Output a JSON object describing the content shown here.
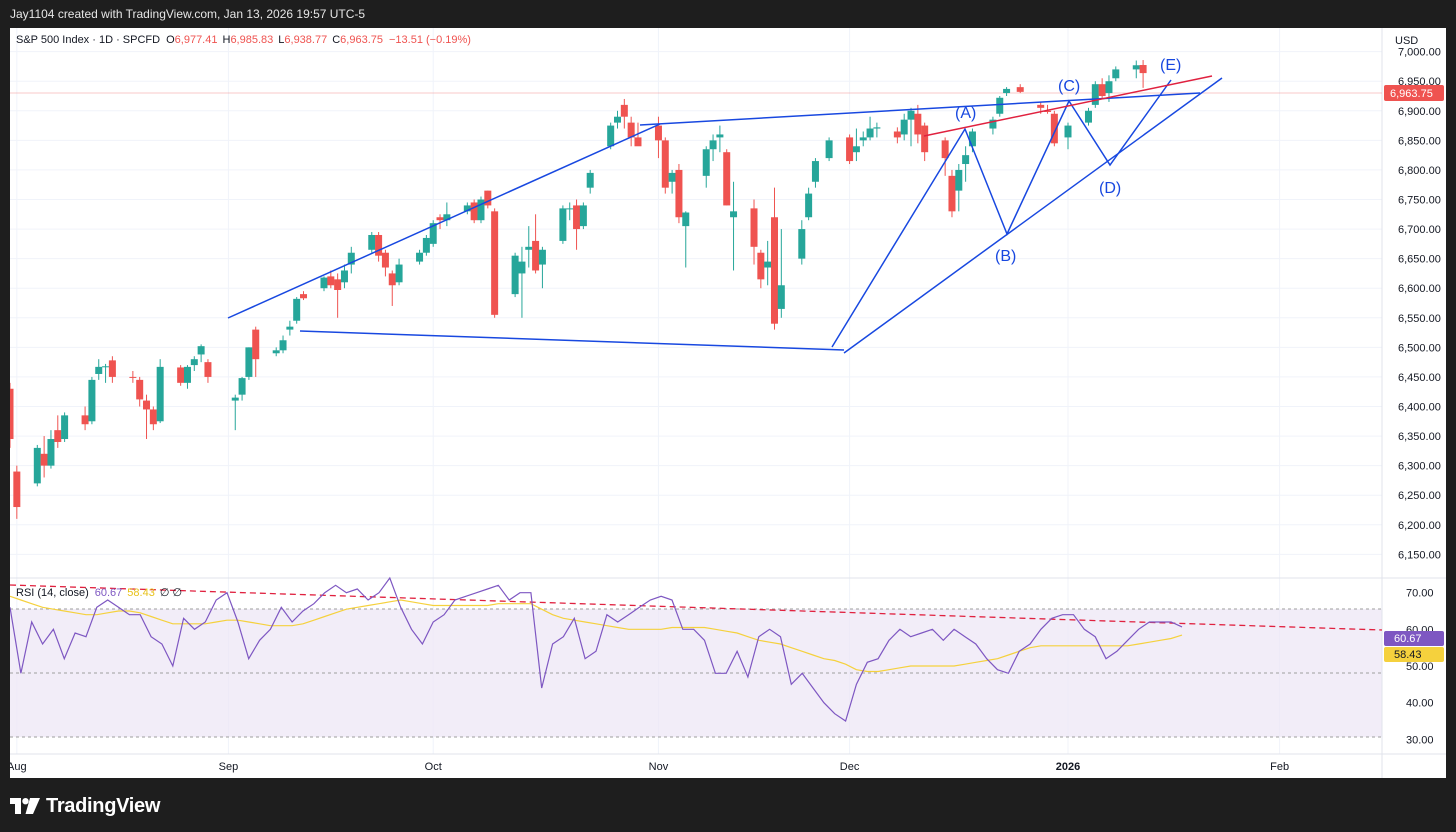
{
  "header": {
    "credit": "Jay1104 created with TradingView.com, Jan 13, 2026 19:57 UTC-5"
  },
  "legend": {
    "symbol": "S&P 500 Index · 1D · SPCFD",
    "o_label": "O",
    "o_value": "6,977.41",
    "h_label": "H",
    "h_value": "6,985.83",
    "l_label": "L",
    "l_value": "6,938.77",
    "c_label": "C",
    "c_value": "6,963.75",
    "change": "−13.51 (−0.19%)"
  },
  "currency": "USD",
  "price_tag": "6,963.75",
  "rsi": {
    "label": "RSI (14, close)",
    "value": "60.67",
    "ma": "58.43",
    "extra": "∅ ∅",
    "value_tag": "60.67",
    "ma_tag": "58.43"
  },
  "footer": {
    "brand": "TradingView"
  },
  "colors": {
    "up": "#26a69a",
    "down": "#ef5350",
    "pattern": "#1848e0",
    "resistance": "#e0213f",
    "rsi": "#7e57c2",
    "rsi_ma": "#f5d13d"
  },
  "chart_data": [
    {
      "type": "candlestick",
      "title": "S&P 500 Index · 1D · SPCFD",
      "ylabel": "USD",
      "ylim": [
        6110,
        7040
      ],
      "y_ticks": [
        "7,000.00",
        "6,950.00",
        "6,900.00",
        "6,850.00",
        "6,800.00",
        "6,750.00",
        "6,700.00",
        "6,650.00",
        "6,600.00",
        "6,550.00",
        "6,500.00",
        "6,450.00",
        "6,400.00",
        "6,350.00",
        "6,300.00",
        "6,250.00",
        "6,200.00",
        "6,150.00"
      ],
      "x_ticks": [
        {
          "label": "Aug",
          "date": "2025-08-01"
        },
        {
          "label": "Sep",
          "date": "2025-09-01"
        },
        {
          "label": "Oct",
          "date": "2025-10-01"
        },
        {
          "label": "Nov",
          "date": "2025-11-03"
        },
        {
          "label": "Dec",
          "date": "2025-12-01"
        },
        {
          "label": "2026",
          "date": "2026-01-02",
          "bold": true
        },
        {
          "label": "Feb",
          "date": "2026-02-02"
        }
      ],
      "x_range": [
        "2025-07-31",
        "2026-02-17"
      ],
      "ohlc": [
        [
          "2025-07-31",
          6430,
          6440,
          6330,
          6345
        ],
        [
          "2025-08-01",
          6290,
          6300,
          6210,
          6230
        ],
        [
          "2025-08-04",
          6270,
          6335,
          6265,
          6330
        ],
        [
          "2025-08-05",
          6320,
          6350,
          6280,
          6300
        ],
        [
          "2025-08-06",
          6300,
          6360,
          6295,
          6345
        ],
        [
          "2025-08-07",
          6360,
          6385,
          6330,
          6340
        ],
        [
          "2025-08-08",
          6345,
          6390,
          6340,
          6385
        ],
        [
          "2025-08-11",
          6385,
          6400,
          6360,
          6370
        ],
        [
          "2025-08-12",
          6375,
          6450,
          6370,
          6445
        ],
        [
          "2025-08-13",
          6455,
          6480,
          6445,
          6467
        ],
        [
          "2025-08-14",
          6467,
          6472,
          6440,
          6468
        ],
        [
          "2025-08-15",
          6478,
          6485,
          6440,
          6450
        ],
        [
          "2025-08-18",
          6450,
          6460,
          6440,
          6449
        ],
        [
          "2025-08-19",
          6445,
          6450,
          6400,
          6412
        ],
        [
          "2025-08-20",
          6410,
          6420,
          6345,
          6395
        ],
        [
          "2025-08-21",
          6395,
          6400,
          6360,
          6370
        ],
        [
          "2025-08-22",
          6375,
          6480,
          6372,
          6467
        ],
        [
          "2025-08-25",
          6466,
          6470,
          6435,
          6440
        ],
        [
          "2025-08-26",
          6440,
          6470,
          6430,
          6467
        ],
        [
          "2025-08-27",
          6470,
          6485,
          6460,
          6480
        ],
        [
          "2025-08-28",
          6488,
          6505,
          6475,
          6502
        ],
        [
          "2025-08-29",
          6475,
          6480,
          6440,
          6450
        ],
        [
          "2025-09-02",
          6410,
          6420,
          6360,
          6415
        ],
        [
          "2025-09-03",
          6420,
          6450,
          6410,
          6448
        ],
        [
          "2025-09-04",
          6450,
          6500,
          6445,
          6500
        ],
        [
          "2025-09-05",
          6530,
          6535,
          6450,
          6480
        ],
        [
          "2025-09-08",
          6490,
          6500,
          6485,
          6495
        ],
        [
          "2025-09-09",
          6495,
          6520,
          6490,
          6512
        ],
        [
          "2025-09-10",
          6530,
          6545,
          6520,
          6535
        ],
        [
          "2025-09-11",
          6545,
          6585,
          6540,
          6582
        ],
        [
          "2025-09-12",
          6590,
          6595,
          6580,
          6583
        ],
        [
          "2025-09-15",
          6600,
          6620,
          6595,
          6618
        ],
        [
          "2025-09-16",
          6620,
          6630,
          6600,
          6605
        ],
        [
          "2025-09-17",
          6615,
          6625,
          6550,
          6597
        ],
        [
          "2025-09-18",
          6610,
          6640,
          6600,
          6630
        ],
        [
          "2025-09-19",
          6640,
          6670,
          6625,
          6660
        ],
        [
          "2025-09-22",
          6665,
          6695,
          6660,
          6690
        ],
        [
          "2025-09-23",
          6690,
          6695,
          6645,
          6655
        ],
        [
          "2025-09-24",
          6660,
          6665,
          6620,
          6635
        ],
        [
          "2025-09-25",
          6625,
          6630,
          6570,
          6605
        ],
        [
          "2025-09-26",
          6610,
          6650,
          6605,
          6640
        ],
        [
          "2025-09-29",
          6645,
          6665,
          6640,
          6660
        ],
        [
          "2025-09-30",
          6660,
          6690,
          6655,
          6685
        ],
        [
          "2025-10-01",
          6675,
          6715,
          6670,
          6710
        ],
        [
          "2025-10-02",
          6720,
          6725,
          6700,
          6715
        ],
        [
          "2025-10-03",
          6715,
          6745,
          6705,
          6725
        ],
        [
          "2025-10-06",
          6730,
          6745,
          6725,
          6740
        ],
        [
          "2025-10-07",
          6745,
          6750,
          6710,
          6715
        ],
        [
          "2025-10-08",
          6715,
          6755,
          6710,
          6750
        ],
        [
          "2025-10-09",
          6765,
          6765,
          6735,
          6740
        ],
        [
          "2025-10-10",
          6730,
          6735,
          6550,
          6555
        ],
        [
          "2025-10-13",
          6590,
          6660,
          6585,
          6655
        ],
        [
          "2025-10-14",
          6625,
          6670,
          6550,
          6645
        ],
        [
          "2025-10-15",
          6665,
          6705,
          6635,
          6670
        ],
        [
          "2025-10-16",
          6680,
          6725,
          6625,
          6630
        ],
        [
          "2025-10-17",
          6640,
          6670,
          6600,
          6665
        ],
        [
          "2025-10-20",
          6680,
          6740,
          6675,
          6735
        ],
        [
          "2025-10-21",
          6735,
          6745,
          6715,
          6735
        ],
        [
          "2025-10-22",
          6740,
          6750,
          6665,
          6700
        ],
        [
          "2025-10-23",
          6705,
          6745,
          6700,
          6740
        ],
        [
          "2025-10-24",
          6770,
          6800,
          6760,
          6795
        ],
        [
          "2025-10-27",
          6840,
          6880,
          6835,
          6875
        ],
        [
          "2025-10-28",
          6880,
          6900,
          6870,
          6890
        ],
        [
          "2025-10-29",
          6910,
          6920,
          6870,
          6890
        ],
        [
          "2025-10-30",
          6880,
          6890,
          6840,
          6855
        ],
        [
          "2025-10-31",
          6855,
          6880,
          6845,
          6840
        ],
        [
          "2025-11-03",
          6875,
          6890,
          6820,
          6850
        ],
        [
          "2025-11-04",
          6850,
          6855,
          6760,
          6770
        ],
        [
          "2025-11-05",
          6780,
          6800,
          6760,
          6795
        ],
        [
          "2025-11-06",
          6800,
          6810,
          6710,
          6720
        ],
        [
          "2025-11-07",
          6705,
          6730,
          6635,
          6728
        ],
        [
          "2025-11-10",
          6790,
          6840,
          6770,
          6835
        ],
        [
          "2025-11-11",
          6835,
          6860,
          6815,
          6850
        ],
        [
          "2025-11-12",
          6855,
          6875,
          6830,
          6860
        ],
        [
          "2025-11-13",
          6830,
          6835,
          6740,
          6740
        ],
        [
          "2025-11-14",
          6720,
          6780,
          6630,
          6730
        ],
        [
          "2025-11-17",
          6735,
          6750,
          6640,
          6670
        ],
        [
          "2025-11-18",
          6660,
          6665,
          6600,
          6615
        ],
        [
          "2025-11-19",
          6635,
          6680,
          6605,
          6645
        ],
        [
          "2025-11-20",
          6720,
          6770,
          6530,
          6540
        ],
        [
          "2025-11-21",
          6565,
          6700,
          6550,
          6605
        ],
        [
          "2025-11-24",
          6650,
          6715,
          6640,
          6700
        ],
        [
          "2025-11-25",
          6720,
          6770,
          6715,
          6760
        ],
        [
          "2025-11-26",
          6780,
          6820,
          6770,
          6815
        ],
        [
          "2025-11-28",
          6820,
          6855,
          6815,
          6850
        ],
        [
          "2025-12-01",
          6855,
          6860,
          6810,
          6815
        ],
        [
          "2025-12-02",
          6830,
          6870,
          6815,
          6840
        ],
        [
          "2025-12-03",
          6850,
          6865,
          6840,
          6855
        ],
        [
          "2025-12-04",
          6855,
          6890,
          6850,
          6870
        ],
        [
          "2025-12-05",
          6870,
          6880,
          6855,
          6872
        ],
        [
          "2025-12-08",
          6865,
          6872,
          6845,
          6855
        ],
        [
          "2025-12-09",
          6860,
          6895,
          6850,
          6885
        ],
        [
          "2025-12-10",
          6885,
          6905,
          6840,
          6900
        ],
        [
          "2025-12-11",
          6895,
          6910,
          6845,
          6860
        ],
        [
          "2025-12-12",
          6875,
          6880,
          6815,
          6830
        ],
        [
          "2025-12-15",
          6850,
          6855,
          6790,
          6820
        ],
        [
          "2025-12-16",
          6790,
          6800,
          6720,
          6730
        ],
        [
          "2025-12-17",
          6765,
          6810,
          6730,
          6800
        ],
        [
          "2025-12-18",
          6810,
          6840,
          6780,
          6825
        ],
        [
          "2025-12-19",
          6840,
          6870,
          6830,
          6865
        ],
        [
          "2025-12-22",
          6870,
          6890,
          6860,
          6885
        ],
        [
          "2025-12-23",
          6895,
          6925,
          6890,
          6922
        ],
        [
          "2025-12-24",
          6930,
          6940,
          6925,
          6937
        ],
        [
          "2025-12-26",
          6940,
          6945,
          6930,
          6932
        ],
        [
          "2025-12-29",
          6910,
          6915,
          6895,
          6905
        ],
        [
          "2025-12-30",
          6900,
          6910,
          6895,
          6898
        ],
        [
          "2025-12-31",
          6895,
          6900,
          6840,
          6845
        ],
        [
          "2026-01-02",
          6855,
          6880,
          6835,
          6875
        ],
        [
          "2026-01-05",
          6880,
          6905,
          6875,
          6900
        ],
        [
          "2026-01-06",
          6910,
          6950,
          6905,
          6945
        ],
        [
          "2026-01-07",
          6945,
          6955,
          6920,
          6925
        ],
        [
          "2026-01-08",
          6930,
          6960,
          6915,
          6950
        ],
        [
          "2026-01-09",
          6955,
          6975,
          6950,
          6970
        ],
        [
          "2026-01-12",
          6970,
          6985,
          6955,
          6977
        ],
        [
          "2026-01-13",
          6977.41,
          6985.83,
          6938.77,
          6963.75
        ]
      ]
    },
    {
      "type": "line",
      "title": "RSI (14, close)",
      "ylim": [
        26,
        74
      ],
      "y_ticks": [
        "70.00",
        "60.00",
        "50.00",
        "40.00",
        "30.00"
      ],
      "bands": [
        30,
        50,
        70
      ],
      "series": [
        {
          "name": "RSI",
          "values": [
            66,
            48,
            62,
            56,
            60,
            52,
            59,
            58,
            66,
            68,
            66,
            64,
            64,
            58,
            56,
            50,
            63,
            60,
            62,
            68,
            70,
            62,
            52,
            57,
            60,
            66,
            62,
            65,
            67,
            70,
            72,
            70,
            71,
            68,
            70,
            74,
            66,
            60,
            56,
            62,
            64,
            68,
            69,
            70,
            71,
            72,
            68,
            70,
            70,
            44,
            56,
            58,
            63,
            52,
            54,
            64,
            62,
            64,
            66,
            68,
            69,
            68,
            60,
            60,
            57,
            48,
            48,
            54,
            47,
            58,
            60,
            58,
            45,
            48,
            44,
            40,
            37,
            35,
            45,
            51,
            52,
            57,
            60,
            58,
            59,
            60,
            57,
            60,
            58,
            56,
            52,
            49,
            48,
            54,
            56,
            60,
            63,
            64,
            64,
            60,
            58,
            52,
            54,
            57,
            60,
            62,
            62,
            62,
            60.67
          ]
        },
        {
          "name": "MA",
          "values": [
            69,
            68,
            67,
            66,
            65.5,
            65,
            64.5,
            64,
            64,
            64.5,
            65,
            65,
            64.5,
            63.5,
            62.5,
            61.5,
            61.5,
            61.5,
            61.5,
            62,
            62.5,
            62.5,
            62,
            61.5,
            61,
            61,
            61,
            61.5,
            62.5,
            63.5,
            64.5,
            65.5,
            66,
            66.5,
            67,
            67.5,
            68,
            67.5,
            67,
            66.5,
            66.5,
            66.5,
            66.5,
            66.5,
            66.5,
            67,
            67,
            67,
            67,
            65.5,
            64,
            63,
            62.5,
            62,
            61.5,
            61,
            60.5,
            60,
            60,
            60,
            60,
            60.5,
            60.5,
            60.5,
            60.5,
            60,
            59.5,
            59,
            58,
            57,
            56.5,
            56,
            55,
            54,
            53,
            52,
            51.5,
            50.5,
            49,
            48.5,
            48.5,
            49,
            49.5,
            50,
            50,
            50,
            50,
            50,
            50.5,
            51,
            51.5,
            52,
            53,
            54,
            55,
            55.5,
            55.5,
            55.5,
            55.5,
            55.5,
            55.5,
            55.5,
            55.5,
            55.5,
            56,
            56.5,
            57,
            57.5,
            58.43
          ]
        }
      ]
    }
  ]
}
